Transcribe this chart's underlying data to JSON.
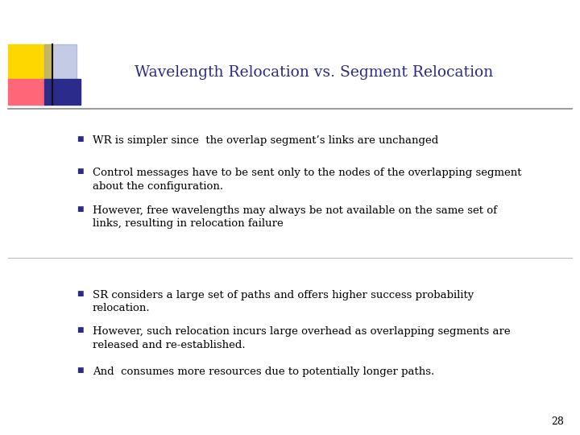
{
  "title": "Wavelength Relocation vs. Segment Relocation",
  "title_color": "#2B2B8B",
  "title_fontsize": 13.5,
  "background_color": "#FFFFFF",
  "bullet_color": "#2B2B8B",
  "text_color": "#000000",
  "body_fontsize": 9.5,
  "section1_bullets": [
    "WR is simpler since  the overlap segment’s links are unchanged",
    "Control messages have to be sent only to the nodes of the overlapping segment\nabout the configuration.",
    "However, free wavelengths may always be not available on the same set of\nlinks, resulting in relocation failure"
  ],
  "section2_bullets": [
    "SR considers a large set of paths and offers higher success probability\nrelocation.",
    "However, such relocation incurs large overhead as overlapping segments are\nreleased and re-established.",
    "And  consumes more resources due to potentially longer paths."
  ],
  "page_number": "28",
  "logo_colors": {
    "yellow": "#FFD700",
    "pink": "#FF6677",
    "blue_dark": "#2B2B8B",
    "blue_light": "#8899CC"
  },
  "divider_color": "#BBBBBB",
  "title_line_color": "#888888",
  "font_family": "DejaVu Serif"
}
